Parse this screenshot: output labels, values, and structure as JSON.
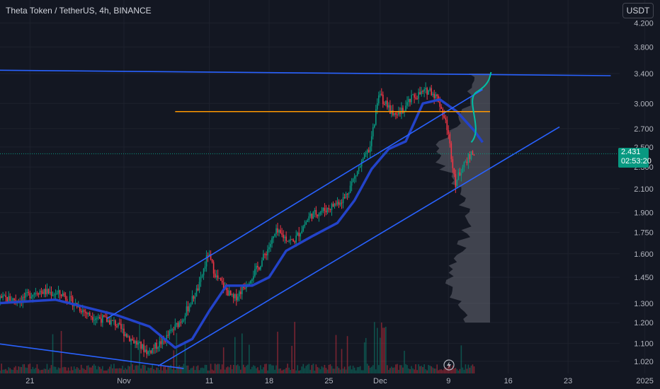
{
  "header": {
    "title": "Theta Token / TetherUS, 4h, BINANCE",
    "currency_button": "USDT"
  },
  "price_badge": {
    "price": "2.431",
    "countdown": "02:53:20"
  },
  "colors": {
    "background": "#131722",
    "up": "#089981",
    "down": "#f23645",
    "trendline": "#2962ff",
    "moving_average": "#2343c9",
    "horizontal_level": "#ff9800",
    "projection_curve": "#00bfa5",
    "volume_profile": "#787b86"
  },
  "chart_data": {
    "type": "candlestick",
    "symbol": "THETAUSDT",
    "interval": "4h",
    "exchange": "BINANCE",
    "y_axis": {
      "scale": "log",
      "ticks": [
        "4.200",
        "3.800",
        "3.400",
        "3.000",
        "2.700",
        "2.500",
        "2.300",
        "2.100",
        "1.900",
        "1.750",
        "1.600",
        "1.450",
        "1.300",
        "1.200",
        "1.100",
        "1.020"
      ]
    },
    "x_axis": {
      "ticks": [
        "21",
        "Nov",
        "11",
        "18",
        "25",
        "Dec",
        "9",
        "16",
        "23",
        "2025"
      ]
    },
    "last_price": 2.431,
    "horizontal_level": 2.9,
    "price_path": [
      [
        "Oct 17",
        1.33
      ],
      [
        "Oct 20",
        1.32
      ],
      [
        "Oct 22",
        1.37
      ],
      [
        "Oct 25",
        1.35
      ],
      [
        "Oct 28",
        1.24
      ],
      [
        "Oct 31",
        1.2
      ],
      [
        "Nov 2",
        1.12
      ],
      [
        "Nov 4",
        1.06
      ],
      [
        "Nov 6",
        1.12
      ],
      [
        "Nov 8",
        1.22
      ],
      [
        "Nov 10",
        1.4
      ],
      [
        "Nov 11",
        1.6
      ],
      [
        "Nov 12",
        1.45
      ],
      [
        "Nov 14",
        1.32
      ],
      [
        "Nov 15",
        1.38
      ],
      [
        "Nov 17",
        1.52
      ],
      [
        "Nov 19",
        1.75
      ],
      [
        "Nov 21",
        1.68
      ],
      [
        "Nov 23",
        1.88
      ],
      [
        "Nov 25",
        1.93
      ],
      [
        "Nov 27",
        2.02
      ],
      [
        "Nov 28",
        2.18
      ],
      [
        "Nov 30",
        2.5
      ],
      [
        "Dec 1",
        3.12
      ],
      [
        "Dec 3",
        2.82
      ],
      [
        "Dec 5",
        3.08
      ],
      [
        "Dec 7",
        3.18
      ],
      [
        "Dec 8",
        3.05
      ],
      [
        "Dec 9",
        2.72
      ],
      [
        "Dec 10",
        2.15
      ],
      [
        "Dec 11",
        2.35
      ],
      [
        "Dec 12",
        2.43
      ]
    ],
    "moving_average": [
      [
        "Oct 17",
        1.3
      ],
      [
        "Oct 24",
        1.32
      ],
      [
        "Oct 31",
        1.24
      ],
      [
        "Nov 4",
        1.18
      ],
      [
        "Nov 7",
        1.08
      ],
      [
        "Nov 9",
        1.12
      ],
      [
        "Nov 11",
        1.26
      ],
      [
        "Nov 13",
        1.4
      ],
      [
        "Nov 16",
        1.4
      ],
      [
        "Nov 18",
        1.45
      ],
      [
        "Nov 20",
        1.62
      ],
      [
        "Nov 23",
        1.72
      ],
      [
        "Nov 26",
        1.82
      ],
      [
        "Nov 28",
        2.0
      ],
      [
        "Nov 30",
        2.28
      ],
      [
        "Dec 2",
        2.48
      ],
      [
        "Dec 4",
        2.56
      ],
      [
        "Dec 6",
        3.0
      ],
      [
        "Dec 8",
        3.05
      ],
      [
        "Dec 10",
        2.9
      ],
      [
        "Dec 12",
        2.68
      ],
      [
        "Dec 13",
        2.55
      ]
    ],
    "trendlines": [
      {
        "name": "resistance",
        "from": [
          "Oct 15",
          3.45
        ],
        "to": [
          "Dec 28",
          3.37
        ]
      },
      {
        "name": "channel-upper",
        "from": [
          "Oct 30",
          1.22
        ],
        "to": [
          "Dec 13",
          3.18
        ]
      },
      {
        "name": "channel-lower",
        "from": [
          "Nov 5",
          1.0
        ],
        "to": [
          "Dec 22",
          2.72
        ]
      },
      {
        "name": "lower-support",
        "from": [
          "Oct 15",
          1.11
        ],
        "to": [
          "Nov 8",
          0.99
        ]
      }
    ],
    "volume_profile": {
      "range": [
        1.2,
        3.4
      ],
      "point_of_control": 2.45
    }
  }
}
